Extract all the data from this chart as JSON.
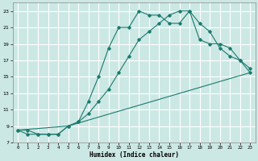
{
  "xlabel": "Humidex (Indice chaleur)",
  "bg_color": "#cce8e4",
  "grid_color": "#ffffff",
  "line_color": "#1a7a6e",
  "xlim": [
    -0.5,
    23.5
  ],
  "ylim": [
    7,
    24
  ],
  "xticks": [
    0,
    1,
    2,
    3,
    4,
    5,
    6,
    7,
    8,
    9,
    10,
    11,
    12,
    13,
    14,
    15,
    16,
    17,
    18,
    19,
    20,
    21,
    22,
    23
  ],
  "yticks": [
    7,
    9,
    11,
    13,
    15,
    17,
    19,
    21,
    23
  ],
  "curve1_x": [
    0,
    1,
    2,
    3,
    4,
    5,
    6,
    7,
    8,
    9,
    10,
    11,
    12,
    13,
    14,
    15,
    16,
    17,
    18,
    19,
    20,
    21,
    22,
    23
  ],
  "curve1_y": [
    8.5,
    8.5,
    8.0,
    8.0,
    8.0,
    9.0,
    9.5,
    12.0,
    15.0,
    18.5,
    21.0,
    21.0,
    23.0,
    22.5,
    22.5,
    21.5,
    21.5,
    23.0,
    19.5,
    19.0,
    19.0,
    18.5,
    17.0,
    16.0
  ],
  "curve2_x": [
    0,
    1,
    2,
    3,
    4,
    5,
    6,
    7,
    8,
    9,
    10,
    11,
    12,
    13,
    14,
    15,
    16,
    17,
    18,
    19,
    20,
    21,
    22,
    23
  ],
  "curve2_y": [
    8.5,
    8.0,
    8.0,
    8.0,
    8.0,
    9.0,
    9.5,
    10.5,
    12.0,
    13.5,
    15.5,
    17.5,
    19.5,
    20.5,
    21.5,
    22.5,
    23.0,
    23.0,
    21.5,
    20.5,
    18.5,
    17.5,
    17.0,
    15.5
  ],
  "curve3_x": [
    0,
    5,
    23
  ],
  "curve3_y": [
    8.5,
    9.0,
    15.5
  ]
}
